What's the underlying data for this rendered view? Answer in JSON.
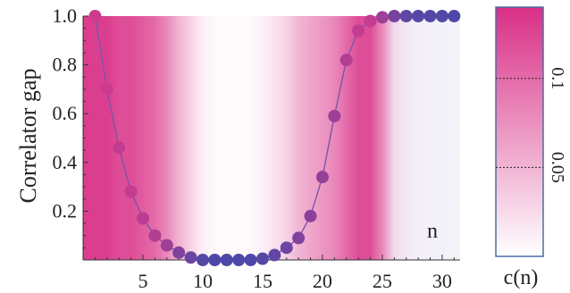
{
  "chart_data": {
    "type": "scatter",
    "ylabel": "Correlator gap",
    "x_annotation": "n",
    "xlim": [
      0,
      31.5
    ],
    "ylim": [
      0,
      1.0
    ],
    "xticks": [
      5,
      10,
      15,
      20,
      25,
      30
    ],
    "yticks": [
      0.2,
      0.4,
      0.6,
      0.8,
      1.0
    ],
    "ytick_labels": [
      "0.2",
      "0.4",
      "0.6",
      "0.8",
      "1.0"
    ],
    "x": [
      1,
      2,
      3,
      4,
      5,
      6,
      7,
      8,
      9,
      10,
      11,
      12,
      13,
      14,
      15,
      16,
      17,
      18,
      19,
      20,
      21,
      22,
      23,
      24,
      25,
      26,
      27,
      28,
      29,
      30,
      31
    ],
    "values": [
      1.0,
      0.7,
      0.46,
      0.28,
      0.17,
      0.1,
      0.06,
      0.03,
      0.01,
      0.0,
      0.0,
      0.0,
      0.0,
      0.0,
      0.005,
      0.02,
      0.05,
      0.09,
      0.18,
      0.34,
      0.59,
      0.82,
      0.94,
      0.98,
      0.995,
      1.0,
      1.0,
      1.0,
      1.0,
      1.0,
      1.0
    ],
    "background_cn": [
      0.13,
      0.13,
      0.12,
      0.12,
      0.11,
      0.1,
      0.08,
      0.05,
      0.03,
      0.01,
      0.005,
      0.003,
      0.003,
      0.005,
      0.01,
      0.02,
      0.03,
      0.05,
      0.06,
      0.07,
      0.08,
      0.1,
      0.12,
      0.12,
      0.08,
      0.04,
      0.02,
      0.01,
      0.008,
      0.006,
      0.005
    ],
    "point_colors": {
      "high": "#d63a8c",
      "low": "#4848a8"
    },
    "line_color": "#7a55a8",
    "cmap": {
      "max": "#d92f86",
      "min": "#ffffff",
      "ticks": [
        0.1,
        0.05
      ],
      "tick_labels": [
        "0.1",
        "0.05"
      ],
      "range": [
        0,
        0.14
      ]
    },
    "colorbar_label": "c(n)",
    "grid": false
  }
}
